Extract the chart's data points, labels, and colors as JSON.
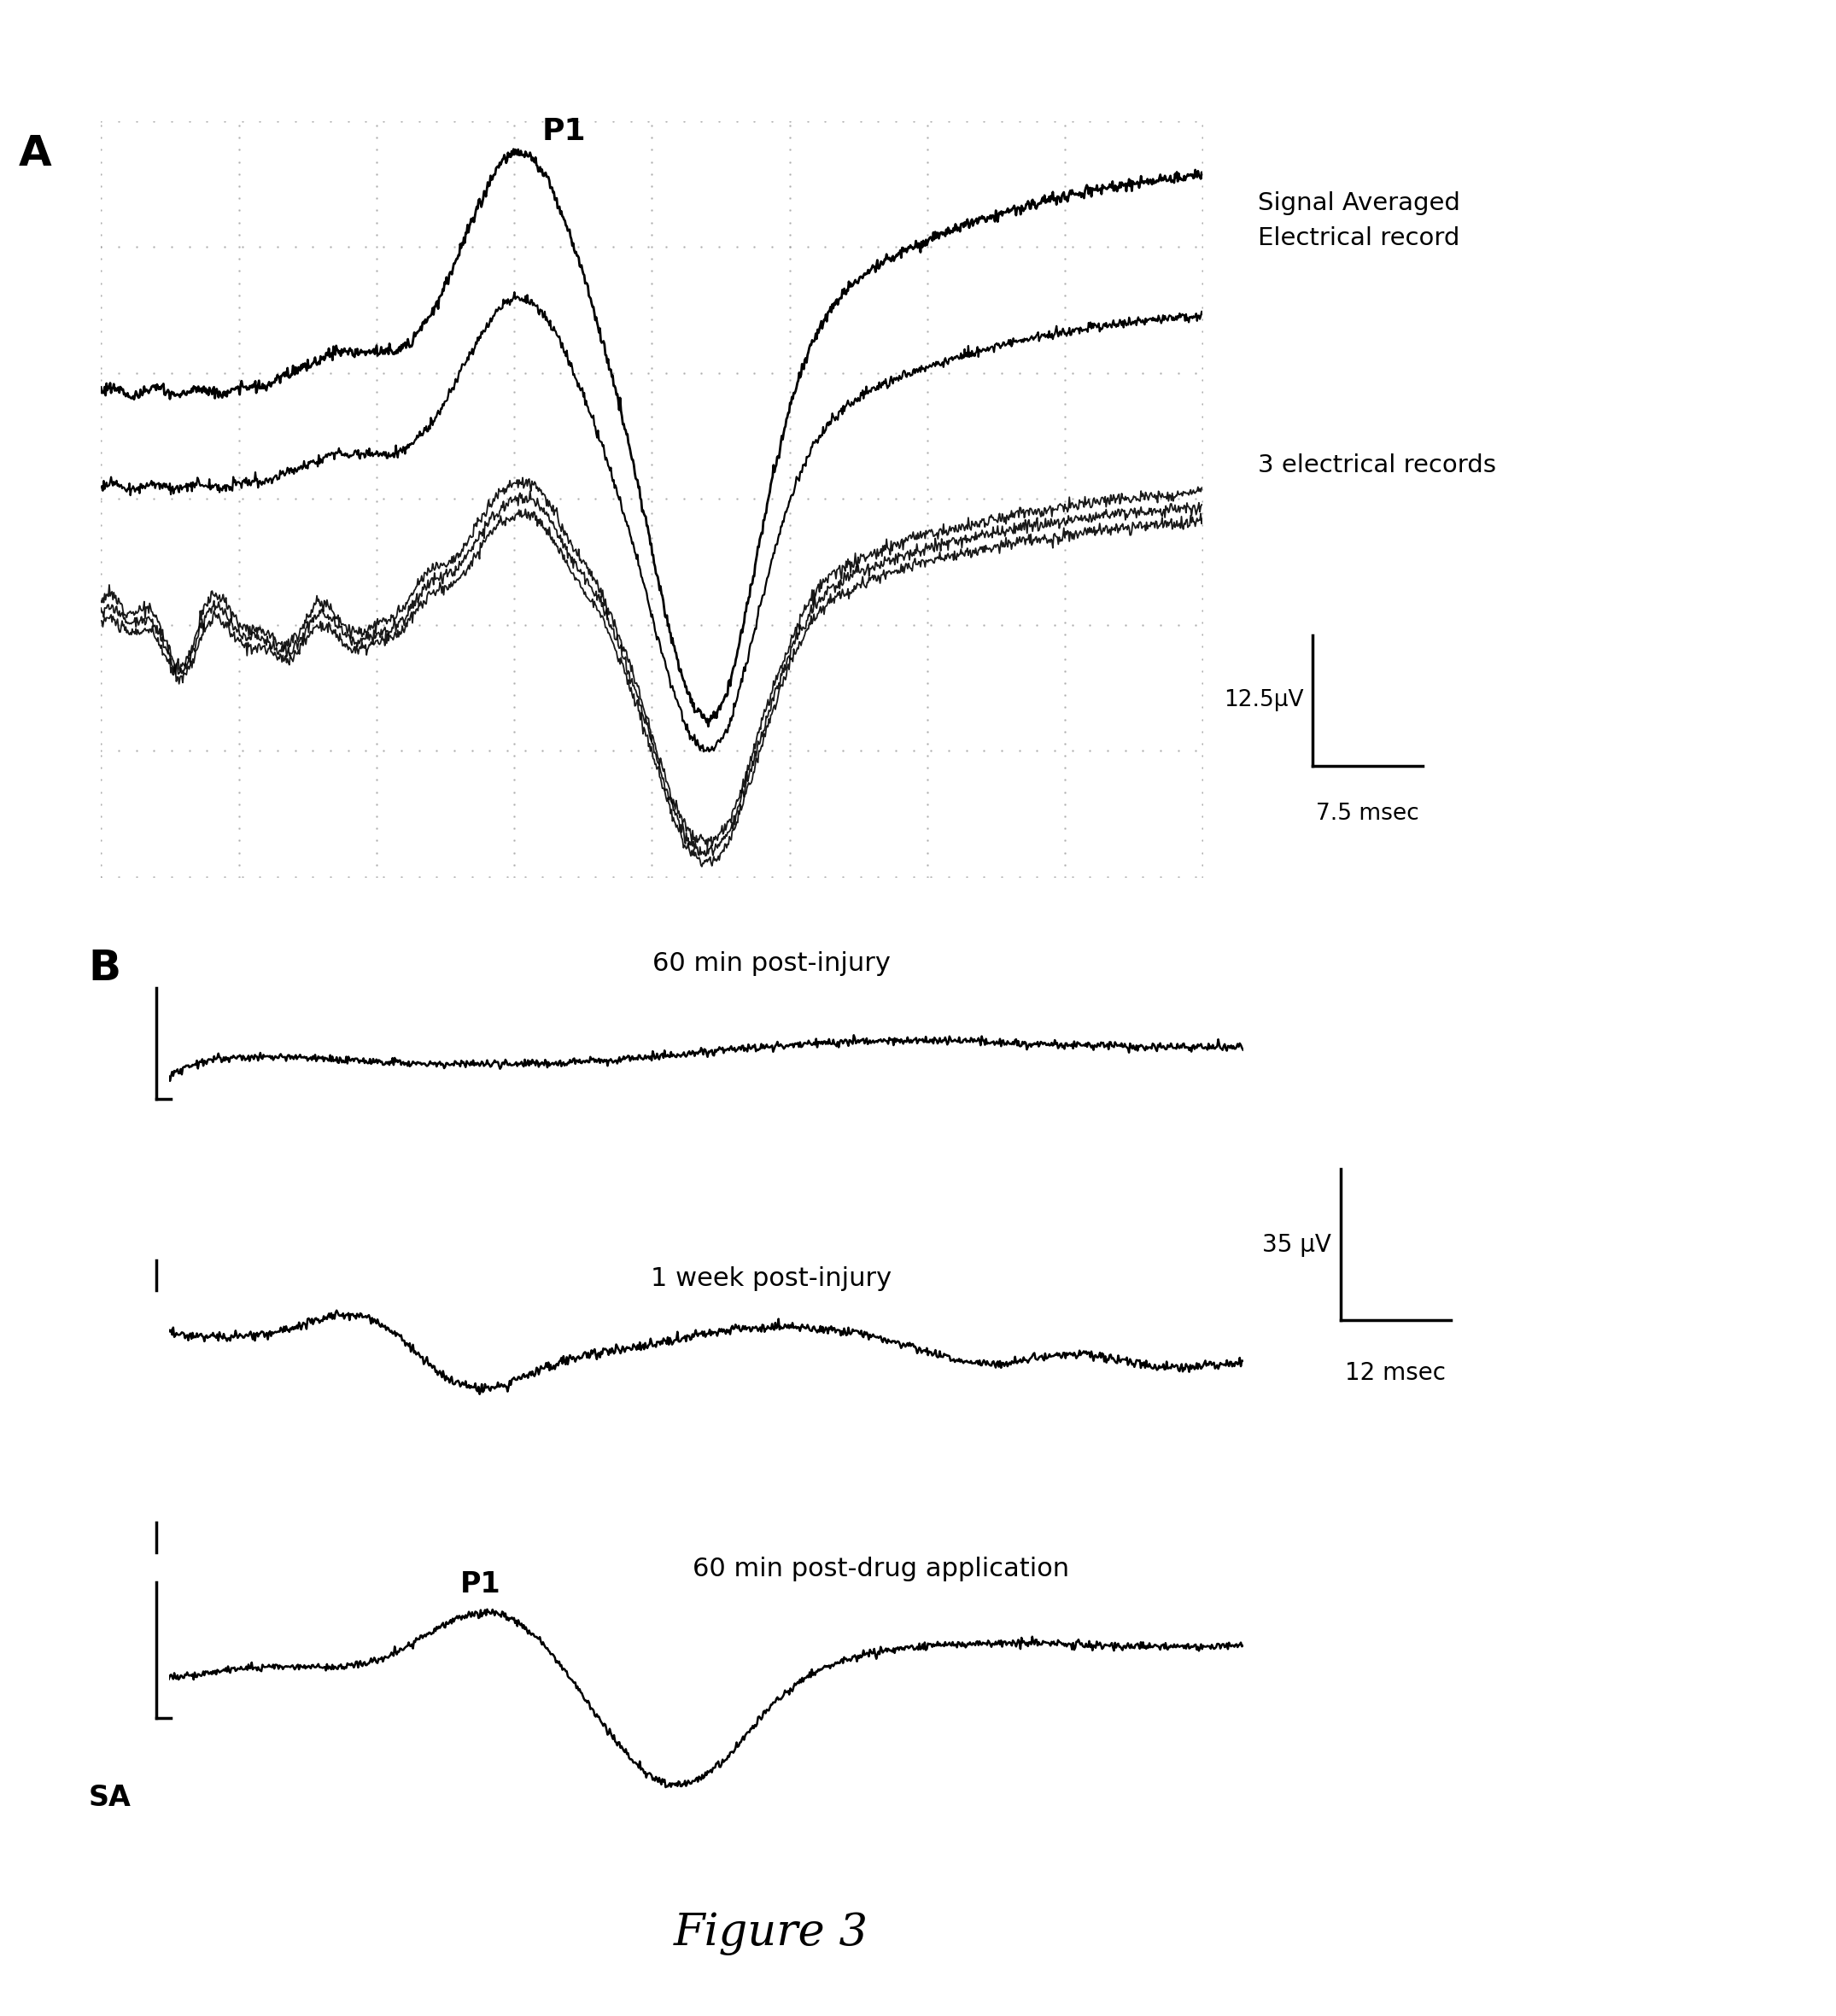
{
  "title": "Figure 3",
  "panel_A_label": "A",
  "panel_B_label": "B",
  "signal_averaged_text": "Signal Averaged\nElectrical record",
  "three_records_text": "3 electrical records",
  "scale_A_uV": "12.5μV",
  "scale_A_msec": "7.5 msec",
  "scale_B_uV": "35 μV",
  "scale_B_msec": "12 msec",
  "label_60min": "60 min post-injury",
  "label_1week": "1 week post-injury",
  "label_drug": "60 min post-drug application",
  "label_SA": "SA",
  "label_P1_A": "P1",
  "label_P1_B": "P1",
  "bg_color": "#ffffff",
  "line_color": "#000000"
}
